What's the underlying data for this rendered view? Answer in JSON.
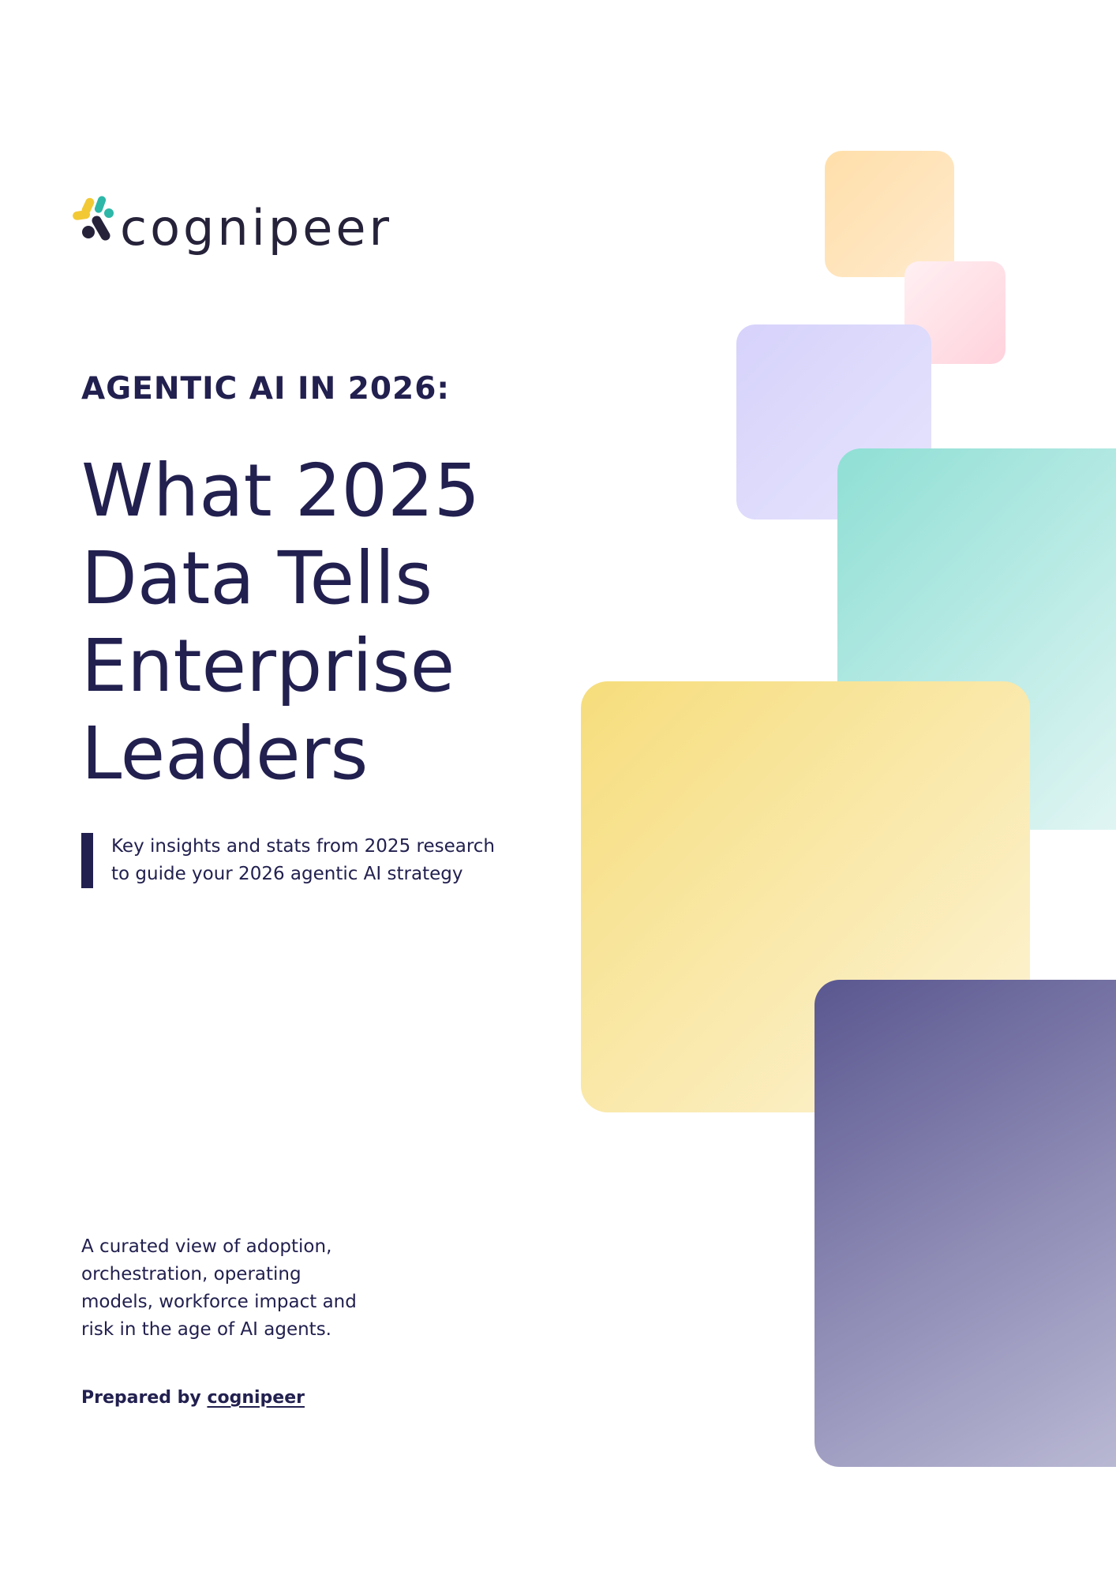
{
  "logo": {
    "wordmark": "cognipeer",
    "icon": "cognipeer-logo-mark"
  },
  "eyebrow": "AGENTIC AI IN 2026:",
  "title_lines": [
    "What 2025",
    "Data Tells",
    "Enterprise",
    "Leaders"
  ],
  "subtitle_lines": [
    "Key insights and stats from 2025 research",
    "to guide your 2026 agentic AI strategy"
  ],
  "blurb_lines": [
    "A curated view of adoption,",
    "orchestration, operating",
    "models, workforce impact and",
    "risk in the age of AI agents."
  ],
  "prepared": {
    "prefix": "Prepared by",
    "brand": "cognipeer"
  },
  "colors": {
    "ink": "#22204f",
    "logo_yellow": "#f2c935",
    "logo_teal": "#2db7a8",
    "logo_dark": "#25223a",
    "peach": "#ffdfaa",
    "pink": "#ffd2dc",
    "lavender": "#d6d2fb",
    "teal": "#8fdfd5",
    "yellow": "#f6dd7c",
    "navy": "#5a5790"
  }
}
